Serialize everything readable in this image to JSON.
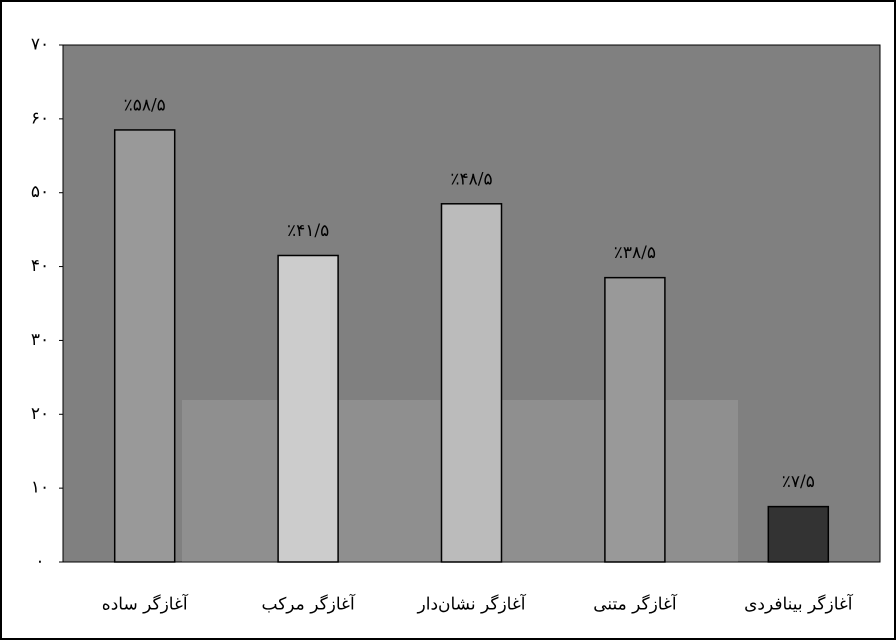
{
  "chart_data": {
    "type": "bar",
    "categories": [
      "آغازگر ساده",
      "آغازگر مرکب",
      "آغازگر نشان‌دار",
      "آغازگر متنی",
      "آغازگر بینافردی"
    ],
    "values": [
      58.5,
      41.5,
      48.5,
      38.5,
      7.5
    ],
    "value_labels": [
      "٪۵۸/۵",
      "٪۴۱/۵",
      "٪۴۸/۵",
      "٪۳۸/۵",
      "٪۷/۵"
    ],
    "colors": [
      "#999999",
      "#cccccc",
      "#bbbbbb",
      "#999999",
      "#333333"
    ],
    "background": "#808080",
    "ylim": [
      0,
      70
    ],
    "yticks": [
      {
        "value": 0,
        "label": "۰"
      },
      {
        "value": 10,
        "label": "۱۰"
      },
      {
        "value": 20,
        "label": "۲۰"
      },
      {
        "value": 30,
        "label": "۳۰"
      },
      {
        "value": 40,
        "label": "۴۰"
      },
      {
        "value": 50,
        "label": "۵۰"
      },
      {
        "value": 60,
        "label": "۶۰"
      },
      {
        "value": 70,
        "label": "۷۰"
      }
    ]
  }
}
